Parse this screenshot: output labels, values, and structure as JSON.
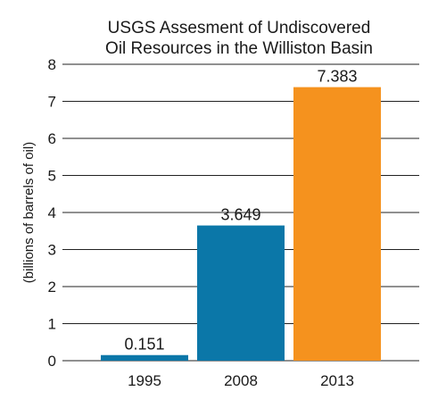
{
  "chart_data": {
    "type": "bar",
    "title": [
      "USGS Assesment of Undiscovered",
      "Oil Resources in the Williston Basin"
    ],
    "xlabel": "",
    "ylabel": "(billions of barrels of oil)",
    "categories": [
      "1995",
      "2008",
      "2013"
    ],
    "values": [
      0.151,
      3.649,
      7.383
    ],
    "data_labels": [
      "0.151",
      "3.649",
      "7.383"
    ],
    "bar_colors": [
      "#0b77a8",
      "#0b77a8",
      "#f5921e"
    ],
    "ylim": [
      0,
      8
    ],
    "yticks": [
      0,
      1,
      2,
      3,
      4,
      5,
      6,
      7,
      8
    ],
    "grid": "horizontal"
  }
}
